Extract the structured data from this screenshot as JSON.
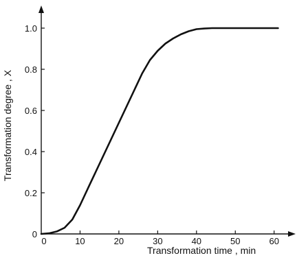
{
  "chart_data": {
    "type": "line",
    "title": "",
    "xlabel": "Transformation  time , min",
    "ylabel": "Transformation  degree , X",
    "xlim": [
      0,
      62
    ],
    "ylim": [
      0,
      1.1
    ],
    "grid": false,
    "x_ticks": [
      0,
      10,
      20,
      30,
      40,
      50,
      60
    ],
    "y_ticks": [
      0,
      0.2,
      0.4,
      0.6,
      0.8,
      1.0
    ],
    "x_tick_labels": [
      "0",
      "10",
      "20",
      "30",
      "40",
      "50",
      "60"
    ],
    "y_tick_labels": [
      "0",
      "0.2",
      "0.4",
      "0.6",
      "0.8",
      "1.0"
    ],
    "series": [
      {
        "color": "#111111",
        "x": [
          0,
          2,
          4,
          6,
          8,
          10,
          12,
          14,
          16,
          18,
          20,
          22,
          24,
          26,
          28,
          30,
          32,
          34,
          36,
          38,
          40,
          42,
          44,
          46,
          50,
          55,
          61
        ],
        "y": [
          0,
          0.003,
          0.012,
          0.03,
          0.07,
          0.14,
          0.22,
          0.3,
          0.38,
          0.46,
          0.54,
          0.62,
          0.7,
          0.78,
          0.845,
          0.89,
          0.925,
          0.95,
          0.97,
          0.985,
          0.995,
          0.998,
          1.0,
          1.0,
          1.0,
          1.0,
          1.0
        ]
      }
    ]
  }
}
